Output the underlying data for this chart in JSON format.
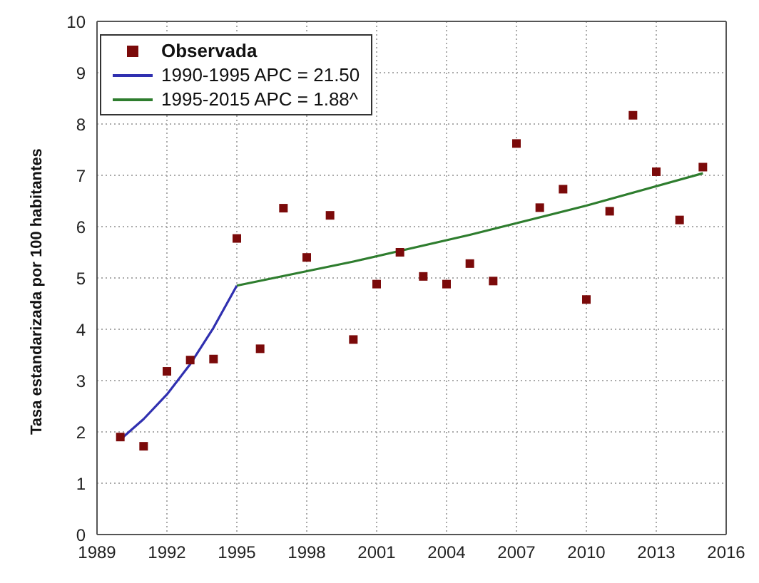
{
  "chart_data": {
    "type": "scatter",
    "ylabel": "Tasa estandarizada por 100 habitantes",
    "xlim": [
      1989,
      2016
    ],
    "xticks": [
      1989,
      1992,
      1995,
      1998,
      2001,
      2004,
      2007,
      2010,
      2013,
      2016
    ],
    "ylim": [
      0,
      10
    ],
    "yticks": [
      0,
      1,
      2,
      3,
      4,
      5,
      6,
      7,
      8,
      9,
      10
    ],
    "grid": true,
    "legend": "top left",
    "series": [
      {
        "name": "Observada",
        "marker": "square",
        "color": "#7b0a0a",
        "x": [
          1990,
          1991,
          1992,
          1993,
          1994,
          1995,
          1996,
          1997,
          1998,
          1999,
          2000,
          2001,
          2002,
          2003,
          2004,
          2005,
          2006,
          2007,
          2008,
          2009,
          2010,
          2011,
          2012,
          2013,
          2014,
          2015
        ],
        "values": [
          1.9,
          1.72,
          3.18,
          3.4,
          3.42,
          5.77,
          3.62,
          6.36,
          5.4,
          6.22,
          3.8,
          4.88,
          5.5,
          5.03,
          4.88,
          5.28,
          4.94,
          7.62,
          6.37,
          6.73,
          4.58,
          6.3,
          8.17,
          7.07,
          6.13,
          7.16
        ]
      },
      {
        "name": "1990-1995 APC = 21.50",
        "type": "line",
        "marker": "none",
        "color": "#3030b0",
        "x": [
          1990,
          1991,
          1992,
          1993,
          1994,
          1995
        ],
        "values": [
          1.85,
          2.25,
          2.73,
          3.32,
          4.03,
          4.85
        ]
      },
      {
        "name": "1995-2015 APC = 1.88^",
        "type": "line",
        "marker": "none",
        "color": "#2e7d2e",
        "x": [
          1995,
          2000,
          2005,
          2010,
          2015
        ],
        "values": [
          4.85,
          5.32,
          5.84,
          6.41,
          7.04
        ]
      }
    ]
  }
}
